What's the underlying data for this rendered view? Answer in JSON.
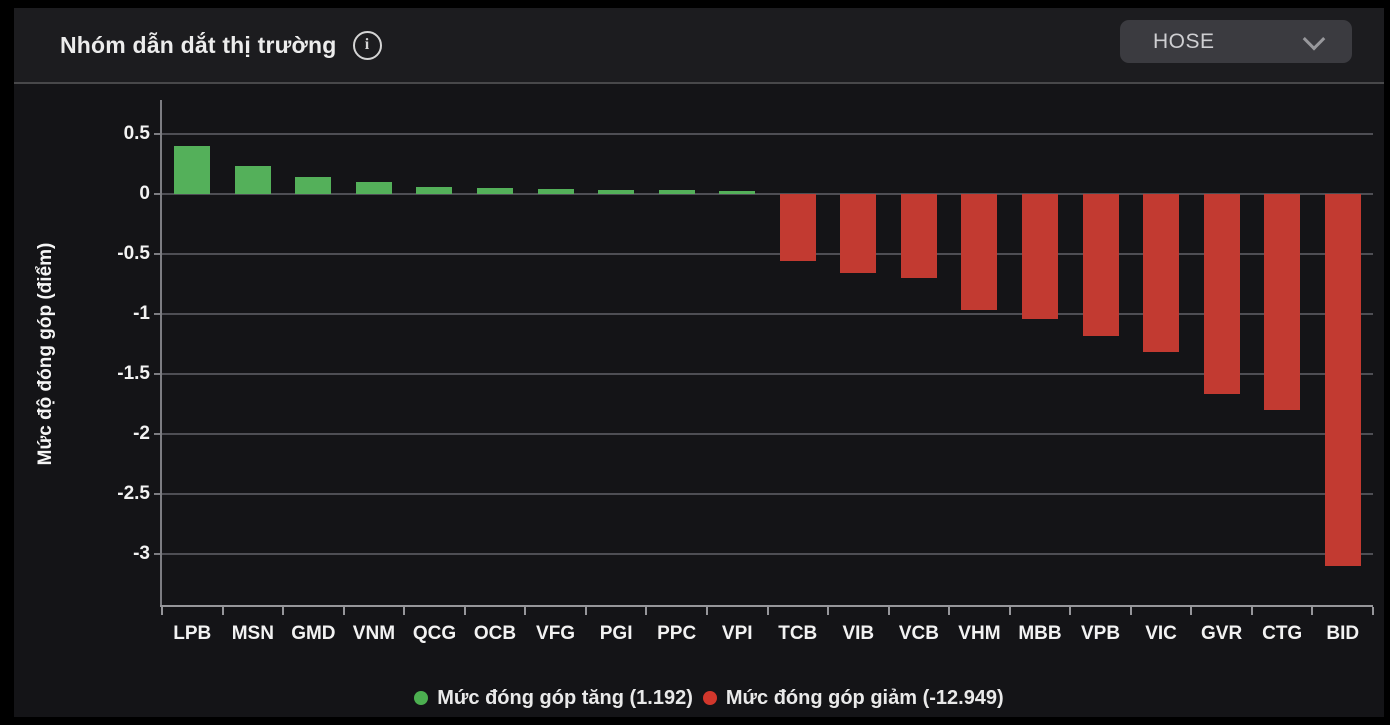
{
  "header": {
    "title": "Nhóm dẫn dắt thị trường",
    "info_icon_glyph": "i",
    "exchange_selector": {
      "value": "HOSE"
    }
  },
  "chart_data": {
    "type": "bar",
    "title": "Nhóm dẫn dắt thị trường",
    "categories": [
      "LPB",
      "MSN",
      "GMD",
      "VNM",
      "QCG",
      "OCB",
      "VFG",
      "PGI",
      "PPC",
      "VPI",
      "TCB",
      "VIB",
      "VCB",
      "VHM",
      "MBB",
      "VPB",
      "VIC",
      "GVR",
      "CTG",
      "BID"
    ],
    "values": [
      0.4,
      0.23,
      0.14,
      0.1,
      0.06,
      0.05,
      0.04,
      0.035,
      0.03,
      0.025,
      -0.56,
      -0.66,
      -0.7,
      -0.97,
      -1.04,
      -1.18,
      -1.32,
      -1.67,
      -1.8,
      -3.1
    ],
    "xlabel": "",
    "ylabel": "Mức độ đóng góp (điểm)",
    "ylim": [
      -3.44,
      0.78
    ],
    "yticks": [
      {
        "value": 0.5,
        "label": "0.5"
      },
      {
        "value": 0,
        "label": "0"
      },
      {
        "value": -0.5,
        "label": "-0.5"
      },
      {
        "value": -1,
        "label": "-1"
      },
      {
        "value": -1.5,
        "label": "-1.5"
      },
      {
        "value": -2,
        "label": "-2"
      },
      {
        "value": -2.5,
        "label": "-2.5"
      },
      {
        "value": -3,
        "label": "-3"
      }
    ],
    "grid": true,
    "legend_position": "bottom",
    "colors": {
      "positive": "#54b05a",
      "negative": "#c23a31"
    },
    "legend": [
      {
        "name": "up",
        "label": "Mức đóng góp tăng (1.192)",
        "color": "#4caf50"
      },
      {
        "name": "down",
        "label": "Mức đóng góp giảm (-12.949)",
        "color": "#d2372c"
      }
    ]
  }
}
